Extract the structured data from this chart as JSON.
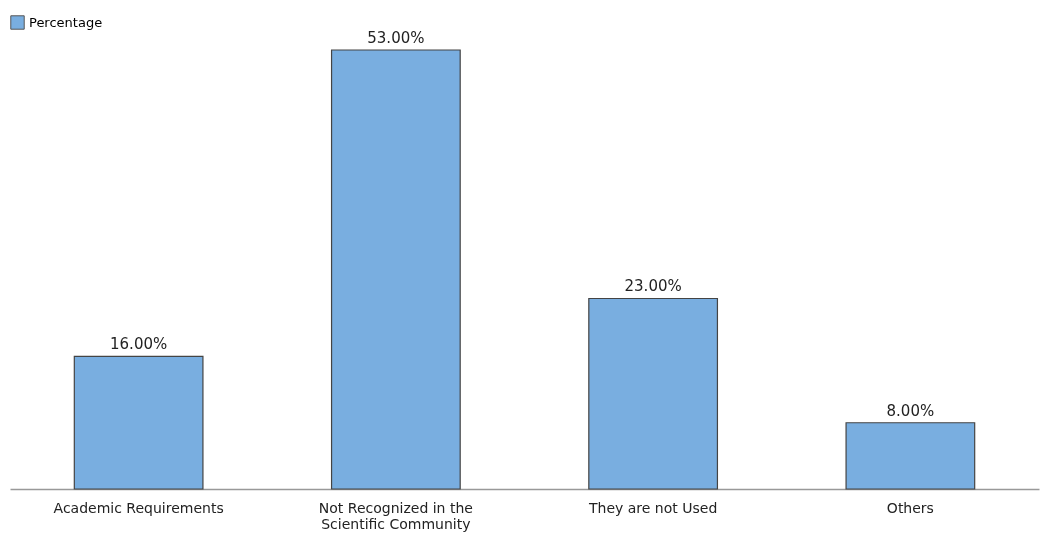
{
  "chart_data": {
    "type": "bar",
    "categories": [
      "Academic Requirements",
      "Not Recognized in the Scientific Community",
      "They are not Used",
      "Others"
    ],
    "series": [
      {
        "name": "Percentage",
        "color": "#79aee0",
        "values": [
          16,
          53,
          23,
          8
        ],
        "value_labels": [
          "16.00%",
          "53.00%",
          "23.00%",
          "8.00%"
        ]
      }
    ],
    "legend": "top",
    "grid": false
  }
}
